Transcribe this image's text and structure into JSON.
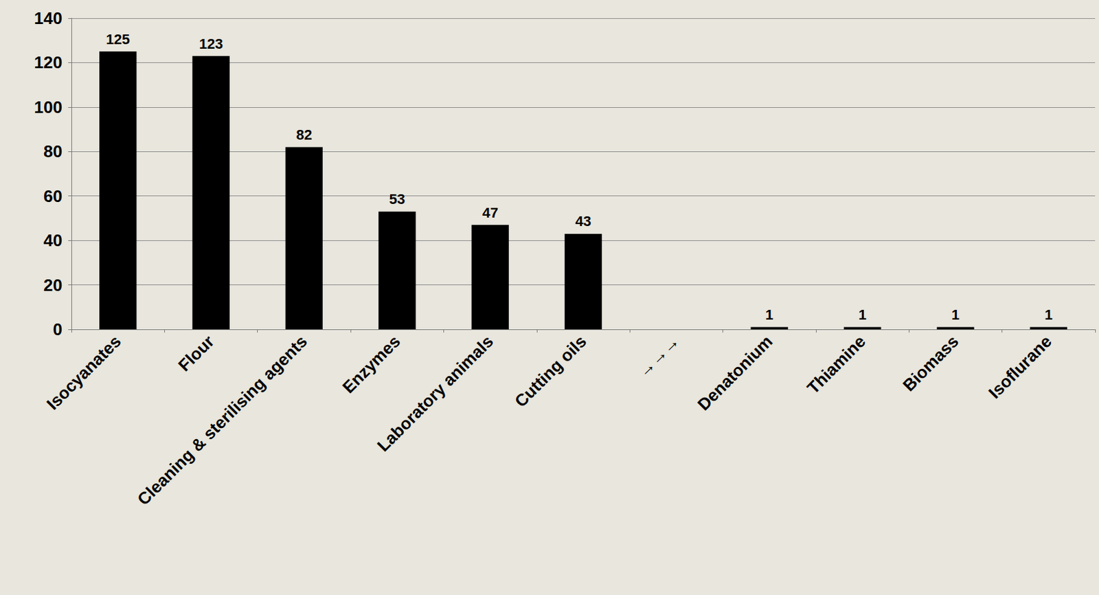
{
  "chart_data": {
    "type": "bar",
    "categories": [
      "Isocyanates",
      "Flour",
      "Cleaning & sterilising agents",
      "Enzymes",
      "Laboratory animals",
      "Cutting oils",
      "→→→",
      "Denatonium",
      "Thiamine",
      "Biomass",
      "Isoflurane"
    ],
    "values": [
      125,
      123,
      82,
      53,
      47,
      43,
      null,
      1,
      1,
      1,
      1
    ],
    "color": "#000000",
    "ylim": [
      0,
      140
    ],
    "yticks": [
      0,
      20,
      40,
      60,
      80,
      100,
      120,
      140
    ],
    "grid": true,
    "data_labels": true
  }
}
